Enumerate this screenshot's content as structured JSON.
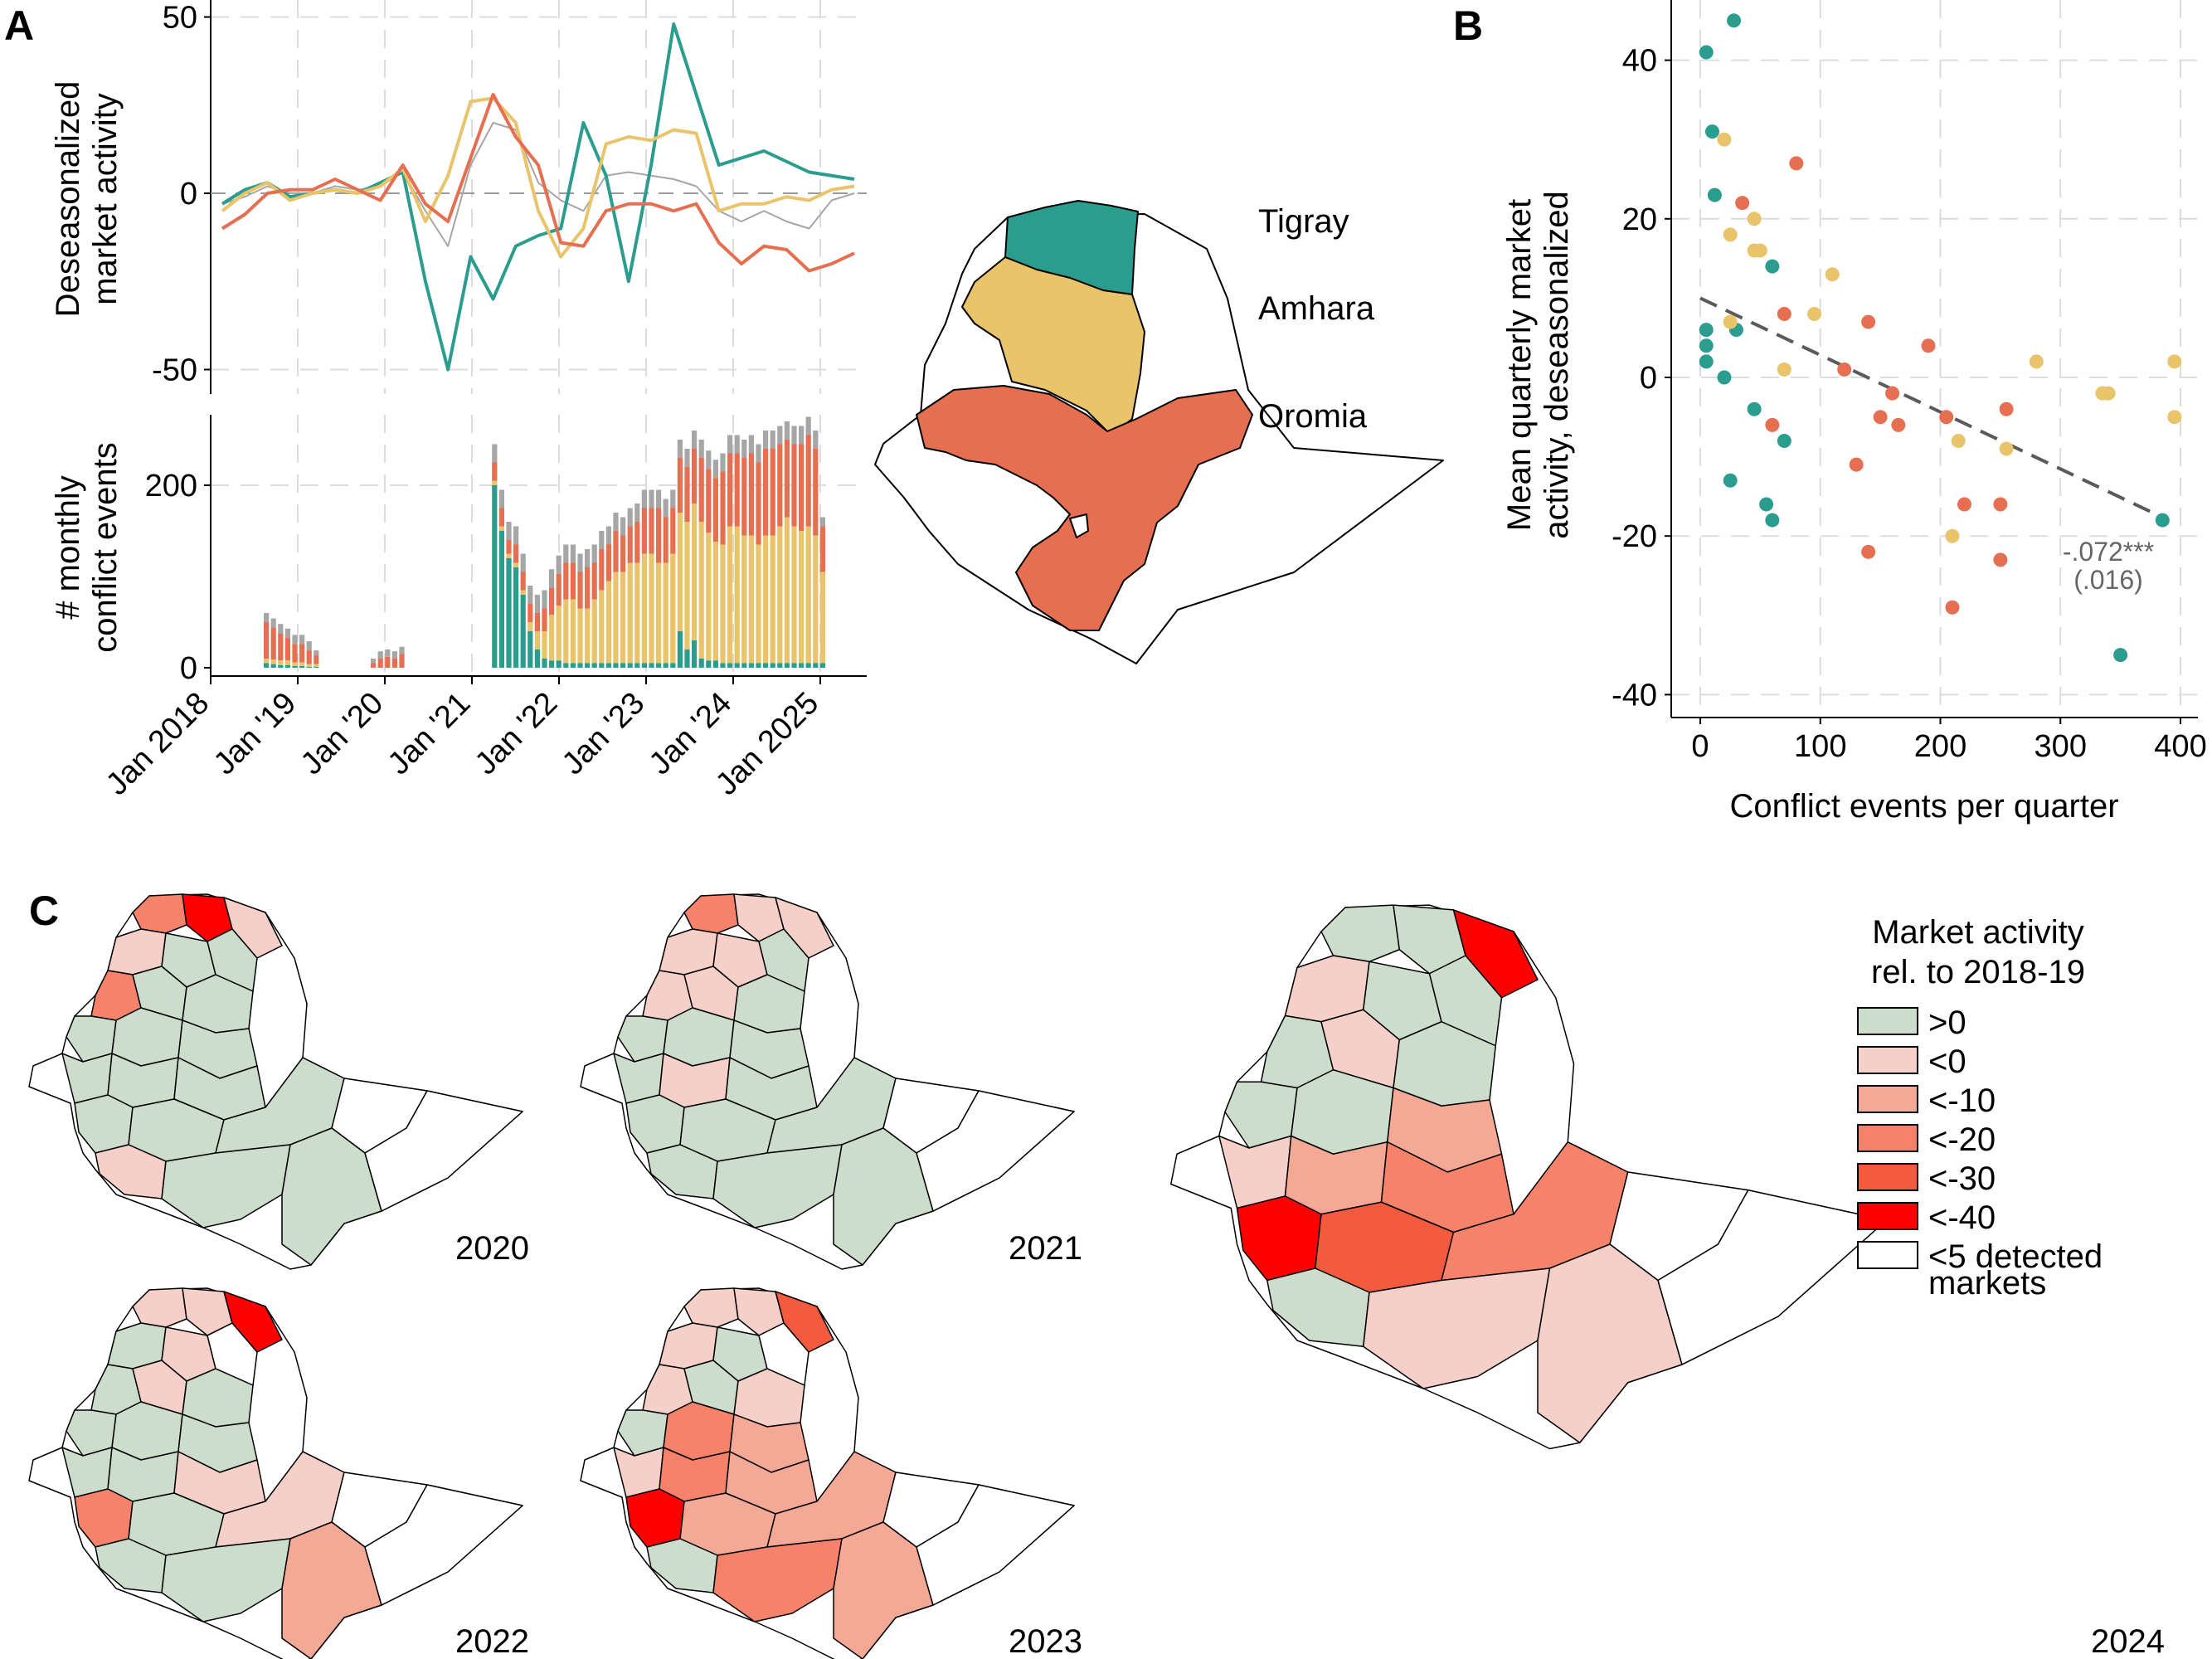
{
  "panels": {
    "a_letter": "A",
    "b_letter": "B",
    "c_letter": "C"
  },
  "colors": {
    "tigray": "#2a9d8f",
    "amhara": "#e9c46a",
    "oromia": "#e76f51",
    "other": "#a6a6a6",
    "green": "#ccddcc",
    "cat_lt0": "#f6cfc8",
    "cat_lt10": "#f4a896",
    "cat_lt20": "#f4836a",
    "cat_lt30": "#f45a3d",
    "cat_lt40": "#ff0000"
  },
  "chart_data": [
    {
      "type": "line",
      "panel": "A-top",
      "ylabel": "Deseasonalized market activity",
      "ylim": [
        -55,
        55
      ],
      "yticks": [
        "50",
        "0",
        "-50"
      ],
      "x": [
        "2018-01",
        "2018-04",
        "2018-07",
        "2018-10",
        "2019-01",
        "2019-04",
        "2019-07",
        "2019-10",
        "2020-01",
        "2020-04",
        "2020-07",
        "2020-10",
        "2021-01",
        "2021-04",
        "2021-07",
        "2021-10",
        "2022-01",
        "2022-04",
        "2022-07",
        "2022-10",
        "2023-01",
        "2023-04",
        "2023-07",
        "2023-10",
        "2024-01",
        "2024-04",
        "2024-07",
        "2024-10",
        "2025-01"
      ],
      "series": [
        {
          "name": "Tigray",
          "values": [
            -3,
            1,
            3,
            -1,
            0,
            1,
            0,
            3,
            6,
            -25,
            -50,
            -18,
            -30,
            -15,
            -12,
            -10,
            20,
            5,
            -25,
            8,
            48,
            28,
            8,
            10,
            12,
            9,
            6,
            5,
            4
          ]
        },
        {
          "name": "Amhara",
          "values": [
            -5,
            0,
            3,
            -2,
            0,
            1,
            0,
            2,
            7,
            -8,
            5,
            26,
            27,
            20,
            -5,
            -18,
            -10,
            14,
            16,
            15,
            18,
            17,
            -5,
            -3,
            -3,
            -1,
            -2,
            1,
            2
          ]
        },
        {
          "name": "Oromia",
          "values": [
            -10,
            -6,
            0,
            1,
            1,
            4,
            1,
            -2,
            8,
            -3,
            -8,
            10,
            28,
            16,
            8,
            -14,
            -15,
            -5,
            -3,
            -3,
            -5,
            -3,
            -14,
            -20,
            -15,
            -16,
            -22,
            -20,
            -17
          ]
        },
        {
          "name": "",
          "values": [
            -3,
            -1,
            2,
            0,
            0,
            2,
            1,
            2,
            6,
            -5,
            -15,
            8,
            20,
            18,
            3,
            -2,
            -5,
            5,
            6,
            5,
            4,
            2,
            -5,
            -8,
            -5,
            -8,
            -10,
            -2,
            0
          ]
        }
      ]
    },
    {
      "type": "bar",
      "panel": "A-bottom",
      "ylabel": "# monthly conflict events",
      "ylim": [
        0,
        270
      ],
      "yticks": [
        "200",
        "0"
      ],
      "xticks": [
        "Jan 2018",
        "Jan '19",
        "Jan '20",
        "Jan '21",
        "Jan '22",
        "Jan '23",
        "Jan '24",
        "Jan 2025"
      ],
      "months_start": "2018-07",
      "series": [
        {
          "name": "Tigray",
          "values": [
            5,
            4,
            3,
            3,
            2,
            2,
            1,
            1,
            0,
            0,
            0,
            0,
            0,
            0,
            0,
            0,
            0,
            0,
            0,
            0,
            0,
            0,
            0,
            0,
            0,
            0,
            0,
            0,
            0,
            0,
            0,
            0,
            200,
            150,
            120,
            110,
            80,
            40,
            20,
            10,
            8,
            8,
            5,
            5,
            5,
            5,
            5,
            5,
            5,
            5,
            5,
            5,
            5,
            5,
            5,
            5,
            5,
            5,
            40,
            20,
            30,
            10,
            8,
            8,
            5,
            5,
            5,
            5,
            5,
            5,
            5,
            5,
            5,
            5,
            5,
            5,
            5,
            5,
            5
          ]
        },
        {
          "name": "Amhara",
          "values": [
            5,
            5,
            5,
            5,
            4,
            4,
            3,
            3,
            0,
            0,
            0,
            0,
            0,
            0,
            0,
            0,
            0,
            0,
            0,
            0,
            0,
            0,
            0,
            0,
            0,
            0,
            0,
            0,
            0,
            0,
            0,
            0,
            5,
            5,
            5,
            5,
            5,
            10,
            20,
            30,
            50,
            60,
            70,
            70,
            60,
            60,
            70,
            80,
            90,
            100,
            100,
            110,
            110,
            120,
            120,
            110,
            110,
            120,
            130,
            140,
            150,
            150,
            140,
            130,
            130,
            150,
            150,
            140,
            140,
            130,
            140,
            140,
            150,
            160,
            150,
            145,
            150,
            140,
            100
          ]
        },
        {
          "name": "Oromia",
          "values": [
            40,
            35,
            30,
            25,
            20,
            20,
            15,
            10,
            0,
            0,
            0,
            0,
            0,
            0,
            0,
            5,
            10,
            12,
            10,
            15,
            0,
            0,
            0,
            0,
            0,
            0,
            0,
            0,
            0,
            0,
            0,
            0,
            20,
            20,
            15,
            20,
            20,
            20,
            20,
            25,
            30,
            35,
            40,
            40,
            40,
            45,
            40,
            45,
            40,
            45,
            40,
            40,
            45,
            50,
            50,
            60,
            50,
            50,
            60,
            60,
            60,
            70,
            70,
            70,
            80,
            80,
            80,
            85,
            90,
            90,
            95,
            95,
            90,
            85,
            90,
            95,
            100,
            95,
            50
          ]
        },
        {
          "name": "",
          "values": [
            10,
            10,
            10,
            10,
            10,
            10,
            10,
            5,
            0,
            0,
            0,
            0,
            0,
            0,
            0,
            5,
            8,
            8,
            8,
            8,
            0,
            0,
            0,
            0,
            0,
            0,
            0,
            0,
            0,
            0,
            0,
            0,
            20,
            20,
            20,
            20,
            20,
            20,
            20,
            20,
            20,
            20,
            20,
            20,
            20,
            20,
            20,
            20,
            20,
            20,
            20,
            20,
            20,
            20,
            20,
            20,
            20,
            20,
            20,
            20,
            20,
            20,
            20,
            20,
            20,
            20,
            20,
            20,
            20,
            20,
            20,
            20,
            20,
            20,
            20,
            20,
            20,
            20,
            10
          ]
        }
      ]
    },
    {
      "type": "scatter",
      "panel": "B",
      "xlabel": "Conflict events per quarter",
      "ylabel": "Mean quarterly market activity, deseasonalized",
      "xlim": [
        -10,
        410
      ],
      "ylim": [
        -42,
        48
      ],
      "xticks": [
        "0",
        "100",
        "200",
        "300",
        "400"
      ],
      "yticks": [
        "40",
        "20",
        "0",
        "-20",
        "-40"
      ],
      "coef": "-.072***",
      "se": "(.016)",
      "fit": {
        "x": [
          0,
          390
        ],
        "y": [
          10,
          -18
        ]
      },
      "series": [
        {
          "name": "Tigray",
          "points": [
            [
              28,
              45
            ],
            [
              5,
              41
            ],
            [
              10,
              31
            ],
            [
              12,
              23
            ],
            [
              60,
              14
            ],
            [
              30,
              6
            ],
            [
              5,
              6
            ],
            [
              5,
              4
            ],
            [
              5,
              2
            ],
            [
              20,
              0
            ],
            [
              45,
              -4
            ],
            [
              70,
              -8
            ],
            [
              25,
              -13
            ],
            [
              55,
              -16
            ],
            [
              60,
              -18
            ],
            [
              385,
              -18
            ],
            [
              350,
              -35
            ]
          ]
        },
        {
          "name": "Amhara",
          "points": [
            [
              20,
              30
            ],
            [
              25,
              18
            ],
            [
              45,
              20
            ],
            [
              50,
              16
            ],
            [
              45,
              16
            ],
            [
              110,
              13
            ],
            [
              95,
              8
            ],
            [
              25,
              7
            ],
            [
              70,
              1
            ],
            [
              280,
              2
            ],
            [
              395,
              2
            ],
            [
              340,
              -2
            ],
            [
              335,
              -2
            ],
            [
              395,
              -5
            ],
            [
              215,
              -8
            ],
            [
              255,
              -9
            ],
            [
              210,
              -20
            ]
          ]
        },
        {
          "name": "Oromia",
          "points": [
            [
              80,
              27
            ],
            [
              35,
              22
            ],
            [
              70,
              8
            ],
            [
              140,
              7
            ],
            [
              190,
              4
            ],
            [
              120,
              1
            ],
            [
              160,
              -2
            ],
            [
              150,
              -5
            ],
            [
              205,
              -5
            ],
            [
              255,
              -4
            ],
            [
              60,
              -6
            ],
            [
              165,
              -6
            ],
            [
              130,
              -11
            ],
            [
              220,
              -16
            ],
            [
              250,
              -16
            ],
            [
              140,
              -22
            ],
            [
              250,
              -23
            ],
            [
              210,
              -29
            ]
          ]
        }
      ]
    }
  ],
  "map_labels": {
    "tigray": "Tigray",
    "amhara": "Amhara",
    "oromia": "Oromia"
  },
  "legend": {
    "title_line1": "Market activity",
    "title_line2": "rel. to 2018-19",
    "items": [
      ">0",
      "<0",
      "<-10",
      "<-20",
      "<-30",
      "<-40",
      "<5 detected",
      "markets"
    ]
  },
  "years": {
    "y2020": "2020",
    "y2021": "2021",
    "y2022": "2022",
    "y2023": "2023",
    "y2024": "2024"
  }
}
